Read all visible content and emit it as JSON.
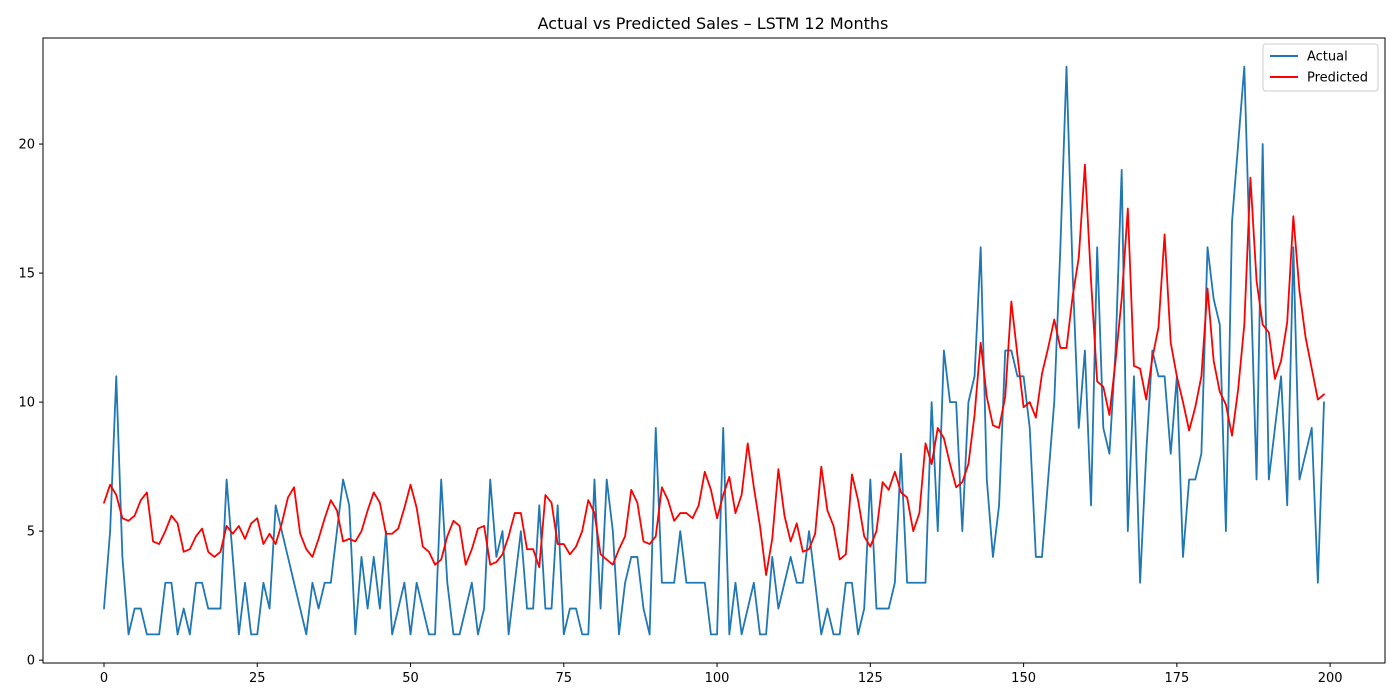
{
  "chart_data": {
    "type": "line",
    "title": "Actual vs Predicted Sales – LSTM 12 Months",
    "xlabel": "",
    "ylabel": "",
    "xlim": [
      -9.95,
      208.95
    ],
    "ylim": [
      -0.11,
      24.11
    ],
    "x_ticks": [
      0,
      25,
      50,
      75,
      100,
      125,
      150,
      175,
      200
    ],
    "y_ticks": [
      0,
      5,
      10,
      15,
      20
    ],
    "grid": false,
    "legend_position": "top-right",
    "series": [
      {
        "name": "Actual",
        "color": "#1f77b4",
        "values": [
          2,
          5,
          11,
          4,
          1,
          2,
          2,
          1,
          1,
          1,
          3,
          3,
          1,
          2,
          1,
          3,
          3,
          2,
          2,
          2,
          7,
          4,
          1,
          3,
          1,
          1,
          3,
          2,
          6,
          5,
          4,
          3,
          2,
          1,
          3,
          2,
          3,
          3,
          5,
          7,
          6,
          1,
          4,
          2,
          4,
          2,
          5,
          1,
          2,
          3,
          1,
          3,
          2,
          1,
          1,
          7,
          3,
          1,
          1,
          2,
          3,
          1,
          2,
          7,
          4,
          5,
          1,
          3,
          5,
          2,
          2,
          6,
          2,
          2,
          6,
          1,
          2,
          2,
          1,
          1,
          7,
          2,
          7,
          5,
          1,
          3,
          4,
          4,
          2,
          1,
          9,
          3,
          3,
          3,
          5,
          3,
          3,
          3,
          3,
          1,
          1,
          9,
          1,
          3,
          1,
          2,
          3,
          1,
          1,
          4,
          2,
          3,
          4,
          3,
          3,
          5,
          3,
          1,
          2,
          1,
          1,
          3,
          3,
          1,
          2,
          7,
          2,
          2,
          2,
          3,
          8,
          3,
          3,
          3,
          3,
          10,
          5,
          12,
          10,
          10,
          5,
          10,
          11,
          16,
          7,
          4,
          6,
          12,
          12,
          11,
          11,
          9,
          4,
          4,
          7,
          10,
          16,
          23,
          15,
          9,
          12,
          6,
          16,
          9,
          8,
          12,
          19,
          5,
          11,
          3,
          8,
          12,
          11,
          11,
          8,
          11,
          4,
          7,
          7,
          8,
          16,
          14,
          13,
          5,
          17,
          20,
          23,
          15,
          7,
          20,
          7,
          9,
          11,
          6,
          16,
          7,
          8,
          9,
          3,
          10
        ]
      },
      {
        "name": "Predicted",
        "color": "#ff0000",
        "values": [
          6.1,
          6.8,
          6.4,
          5.5,
          5.4,
          5.6,
          6.2,
          6.5,
          4.6,
          4.5,
          5.0,
          5.6,
          5.3,
          4.2,
          4.3,
          4.8,
          5.1,
          4.2,
          4.0,
          4.2,
          5.2,
          4.9,
          5.2,
          4.7,
          5.3,
          5.5,
          4.5,
          4.9,
          4.5,
          5.3,
          6.3,
          6.7,
          4.9,
          4.3,
          4.0,
          4.7,
          5.5,
          6.2,
          5.8,
          4.6,
          4.7,
          4.6,
          5.0,
          5.8,
          6.5,
          6.1,
          4.9,
          4.9,
          5.1,
          5.9,
          6.8,
          5.9,
          4.4,
          4.2,
          3.7,
          3.9,
          4.8,
          5.4,
          5.2,
          3.7,
          4.3,
          5.1,
          5.2,
          3.7,
          3.8,
          4.1,
          4.8,
          5.7,
          5.7,
          4.3,
          4.3,
          3.6,
          6.4,
          6.1,
          4.5,
          4.5,
          4.1,
          4.4,
          5.0,
          6.2,
          5.7,
          4.1,
          3.9,
          3.7,
          4.3,
          4.8,
          6.6,
          6.1,
          4.6,
          4.5,
          4.8,
          6.7,
          6.2,
          5.4,
          5.7,
          5.7,
          5.5,
          6.0,
          7.3,
          6.6,
          5.5,
          6.4,
          7.1,
          5.7,
          6.4,
          8.4,
          6.7,
          5.2,
          3.3,
          4.7,
          7.4,
          5.6,
          4.6,
          5.3,
          4.2,
          4.3,
          4.9,
          7.5,
          5.8,
          5.2,
          3.9,
          4.1,
          7.2,
          6.2,
          4.8,
          4.4,
          5.0,
          6.9,
          6.6,
          7.3,
          6.5,
          6.3,
          5.0,
          5.7,
          8.4,
          7.6,
          9.0,
          8.6,
          7.6,
          6.7,
          6.9,
          7.6,
          9.5,
          12.3,
          10.2,
          9.1,
          9.0,
          10.2,
          13.9,
          11.8,
          9.8,
          10.0,
          9.4,
          11.1,
          12.1,
          13.2,
          12.1,
          12.1,
          14.1,
          15.6,
          19.2,
          14.7,
          10.8,
          10.6,
          9.5,
          11.6,
          14.0,
          17.5,
          11.4,
          11.3,
          10.1,
          11.7,
          12.9,
          16.5,
          12.3,
          11.0,
          10.0,
          8.9,
          9.8,
          11.0,
          14.4,
          11.6,
          10.4,
          9.9,
          8.7,
          10.5,
          13.0,
          18.7,
          14.7,
          13.0,
          12.7,
          10.9,
          11.6,
          13.1,
          17.2,
          14.3,
          12.5,
          11.3,
          10.1,
          10.3
        ]
      }
    ]
  }
}
